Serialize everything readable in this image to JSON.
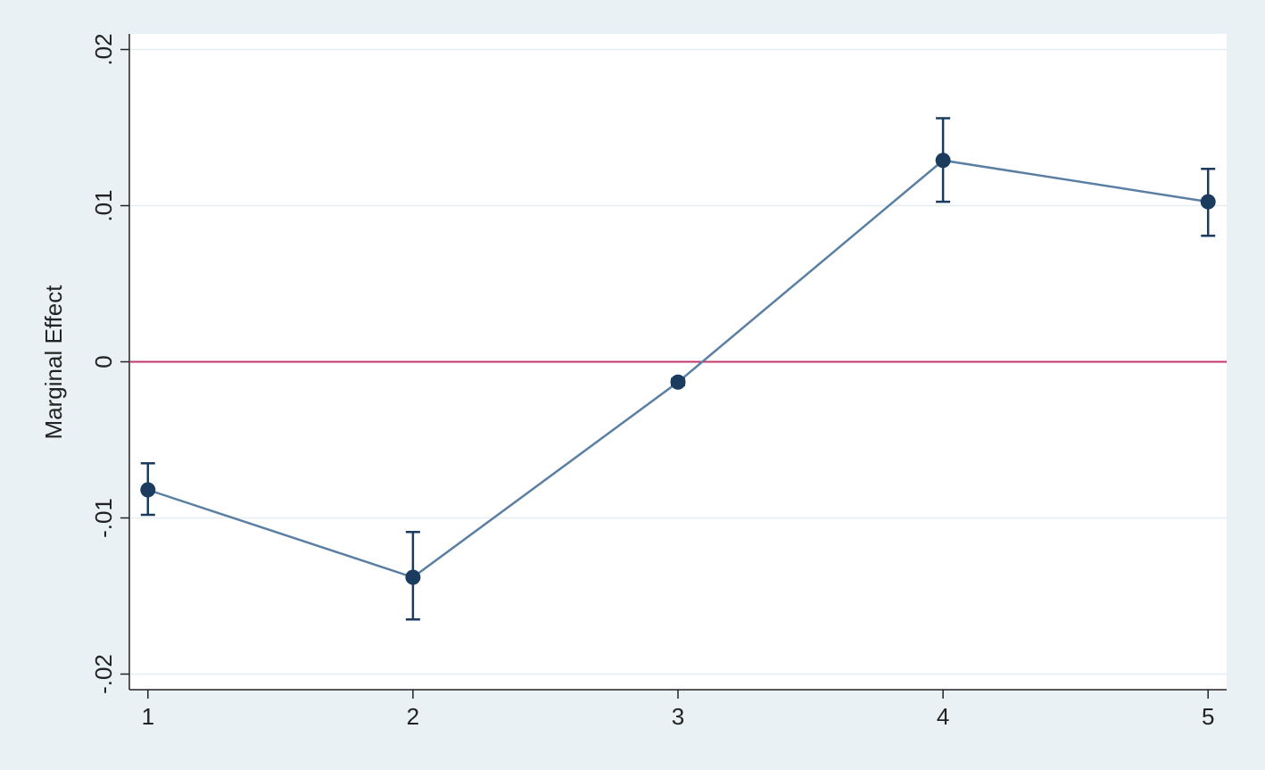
{
  "chart_data": {
    "type": "line",
    "y_label": "Marginal Effect",
    "x": [
      1,
      2,
      3,
      4,
      5
    ],
    "series": [
      {
        "color": "#5b7fa3",
        "marker_color": "#1b3b5f",
        "values": [
          -0.0082,
          -0.0138,
          -0.0013,
          0.0129,
          0.01025
        ],
        "ci_low": [
          -0.0098,
          -0.0165,
          -0.0015,
          0.01025,
          0.00807
        ],
        "ci_high": [
          -0.0065,
          -0.0109,
          -0.0011,
          0.0156,
          0.01236
        ]
      }
    ],
    "reference_line": {
      "value": 0,
      "color": "#c2356b"
    },
    "xlim": [
      0.93,
      5.07
    ],
    "xticks": [
      1,
      2,
      3,
      4,
      5
    ],
    "ylim": [
      -0.021,
      0.021
    ],
    "yticks": [
      {
        "value": -0.02,
        "label": "-.02"
      },
      {
        "value": -0.01,
        "label": "-.01"
      },
      0,
      {
        "value": 0.01,
        "label": ".01"
      },
      {
        "value": 0.02,
        "label": ".02"
      }
    ],
    "grid": true
  }
}
